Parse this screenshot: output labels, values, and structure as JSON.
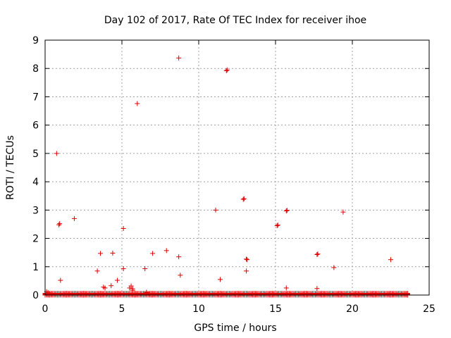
{
  "chart_data": {
    "type": "scatter",
    "title": "Day 102 of 2017, Rate Of TEC Index for receiver ihoe",
    "xlabel": "GPS time / hours",
    "ylabel": "ROTI / TECUs",
    "xlim": [
      0,
      25
    ],
    "ylim": [
      0,
      9
    ],
    "xticks": [
      0,
      5,
      10,
      15,
      20,
      25
    ],
    "yticks": [
      0,
      1,
      2,
      3,
      4,
      5,
      6,
      7,
      8,
      9
    ],
    "grid": true,
    "marker": "+",
    "color": "#e00000",
    "baseline_band": {
      "x_start": 0.0,
      "x_end": 23.6,
      "step": 0.1,
      "y_values": [
        0.0,
        0.02,
        0.04,
        0.06
      ]
    },
    "series": [
      {
        "name": "ROTI",
        "x": [
          0.75,
          0.9,
          0.95,
          1.0,
          1.9,
          3.4,
          3.6,
          3.8,
          3.9,
          4.3,
          4.4,
          4.7,
          5.1,
          5.1,
          5.5,
          5.6,
          5.7,
          6.0,
          6.5,
          6.6,
          7.0,
          7.9,
          8.7,
          8.7,
          8.8,
          11.1,
          11.4,
          11.8,
          11.85,
          12.9,
          12.95,
          13.1,
          13.15,
          13.1,
          15.1,
          15.15,
          15.7,
          15.75,
          15.7,
          17.7,
          17.75,
          17.7,
          18.8,
          19.4,
          22.5,
          0.1,
          0.2,
          5.7,
          6.6
        ],
        "y": [
          5.0,
          2.48,
          2.52,
          0.52,
          2.7,
          0.85,
          1.47,
          0.28,
          0.25,
          0.33,
          1.48,
          0.52,
          2.35,
          0.93,
          0.25,
          0.32,
          0.17,
          6.76,
          0.93,
          0.08,
          1.47,
          1.57,
          8.37,
          1.35,
          0.7,
          3.0,
          0.55,
          7.92,
          7.95,
          3.38,
          3.4,
          1.27,
          1.25,
          0.85,
          2.45,
          2.47,
          2.97,
          2.99,
          0.25,
          1.43,
          1.45,
          0.23,
          0.97,
          2.93,
          1.25,
          0.12,
          0.08,
          0.22,
          0.1
        ]
      }
    ]
  }
}
